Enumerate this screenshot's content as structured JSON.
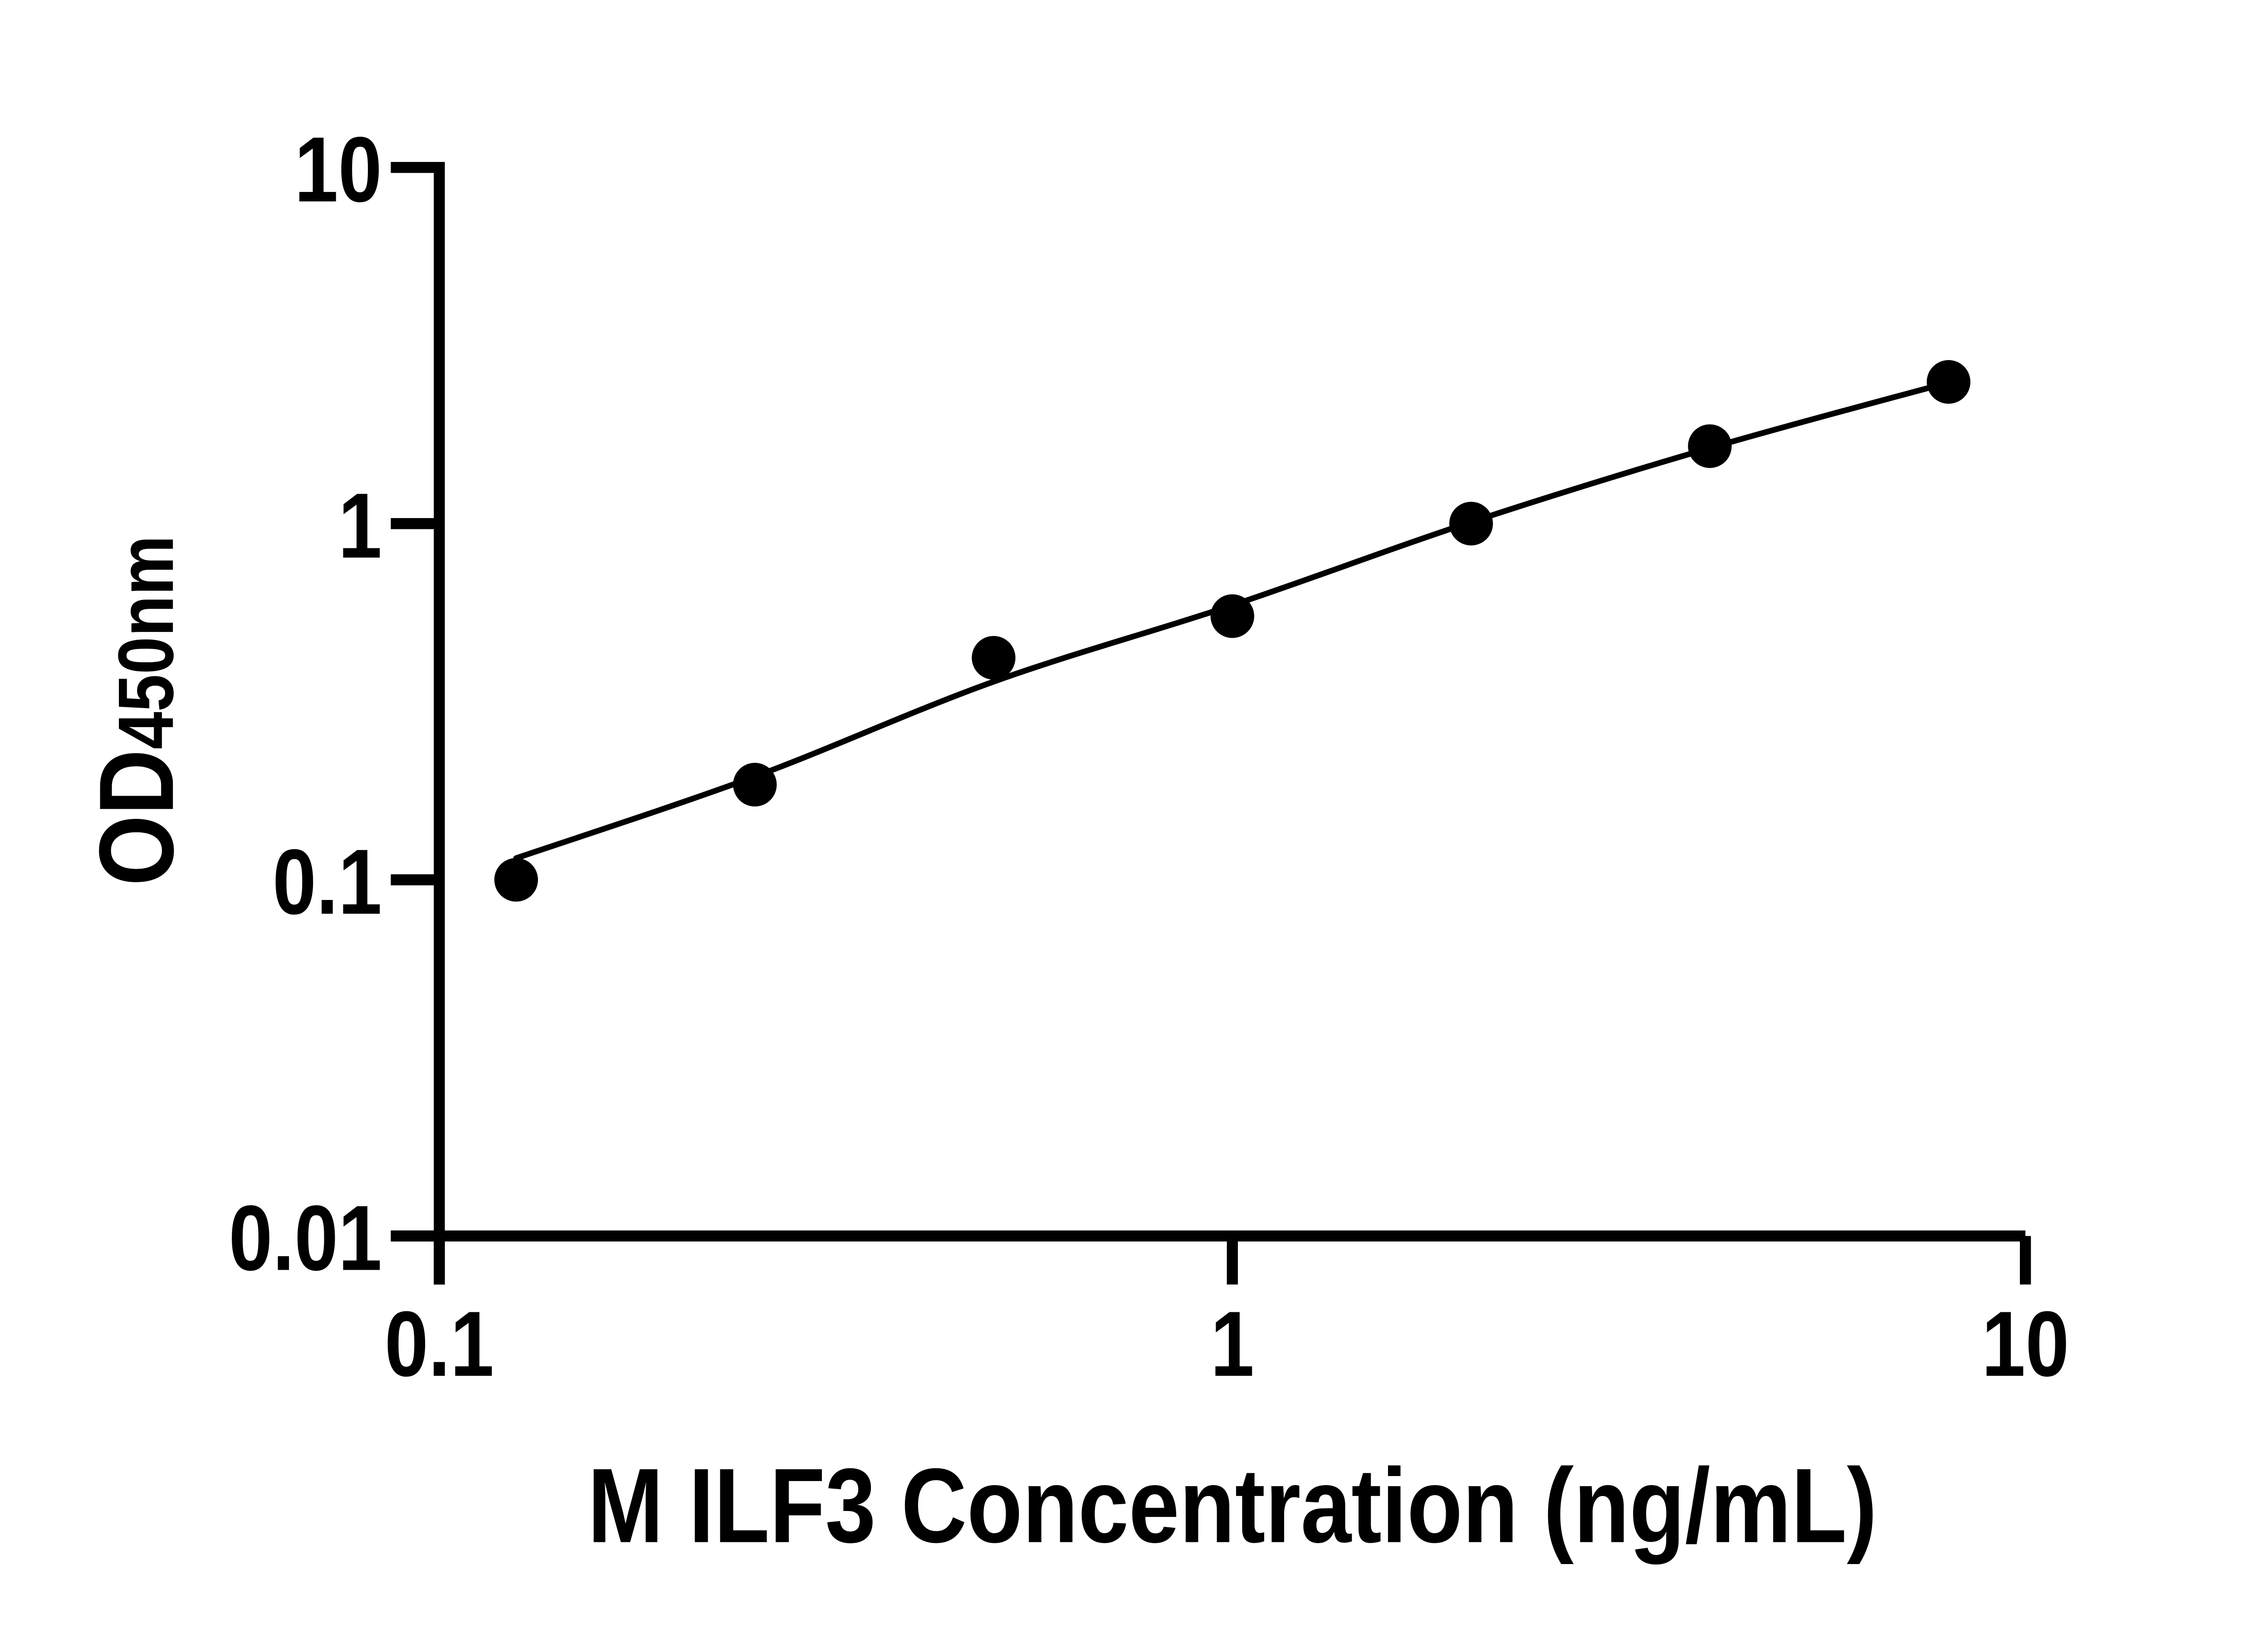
{
  "chart_data": {
    "type": "scatter",
    "title": "",
    "xlabel": "M ILF3 Concentration (ng/mL)",
    "ylabel_main": "OD",
    "ylabel_sub": "450nm",
    "x_scale": "log",
    "y_scale": "log",
    "xlim": [
      0.1,
      10
    ],
    "ylim": [
      0.01,
      10
    ],
    "grid": false,
    "legend": false,
    "background_color": "#ffffff",
    "axis_color": "#000000",
    "marker_color": "#000000",
    "curve_color": "#000000",
    "x_ticks": [
      {
        "value": 0.1,
        "label": "0.1"
      },
      {
        "value": 1,
        "label": "1"
      },
      {
        "value": 10,
        "label": "10"
      }
    ],
    "y_ticks": [
      {
        "value": 10,
        "label": "10"
      },
      {
        "value": 1,
        "label": "1"
      },
      {
        "value": 0.1,
        "label": "0.1"
      },
      {
        "value": 0.01,
        "label": "0.01"
      }
    ],
    "series": [
      {
        "name": "standard-curve-points",
        "marker": "filled-circle",
        "x": [
          0.125,
          0.25,
          0.5,
          1,
          2,
          4,
          8
        ],
        "od": [
          0.1,
          0.185,
          0.42,
          0.55,
          1.0,
          1.65,
          2.5
        ]
      }
    ],
    "fit_curve": {
      "name": "fitted-line",
      "x": [
        0.125,
        0.25,
        0.5,
        1,
        2,
        4,
        8
      ],
      "od": [
        0.115,
        0.195,
        0.36,
        0.59,
        1.01,
        1.63,
        2.49
      ]
    }
  }
}
